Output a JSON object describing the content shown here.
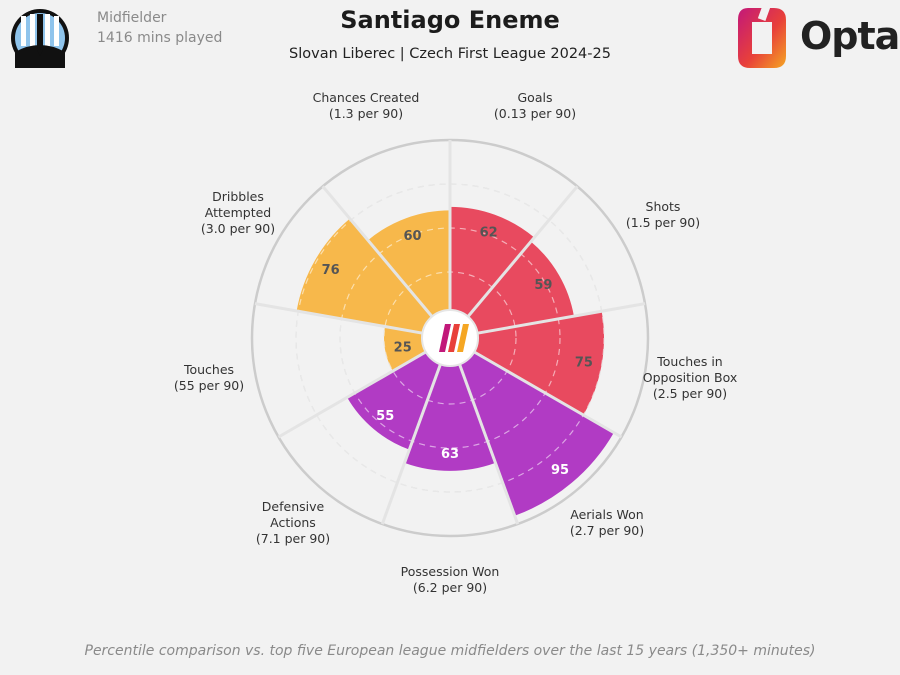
{
  "header": {
    "player_name": "Santiago Eneme",
    "subtitle": "Slovan Liberec | Czech First League 2024-25",
    "position": "Midfielder",
    "minutes": "1416 mins played",
    "brand": "Opta"
  },
  "footer": {
    "note": "Percentile comparison vs. top five European league midfielders over the last 15 years (1,350+ minutes)"
  },
  "colors": {
    "attacking": "#e84a5f",
    "possession": "#f7b84b",
    "defending": "#b13bc4",
    "background": "#f2f2f2",
    "grid": "#cccccc"
  },
  "chart_data": {
    "type": "polar-bar",
    "title": "Santiago Eneme",
    "subtitle": "Slovan Liberec | Czech First League 2024-25",
    "rlim": [
      0,
      100
    ],
    "series": [
      {
        "metric": "Goals",
        "per90": "(0.13 per 90)",
        "percentile": 62,
        "group": "attacking"
      },
      {
        "metric": "Shots",
        "per90": "(1.5 per 90)",
        "percentile": 59,
        "group": "attacking"
      },
      {
        "metric": "Touches in Opposition Box",
        "per90": "(2.5 per 90)",
        "percentile": 75,
        "group": "attacking"
      },
      {
        "metric": "Aerials Won",
        "per90": "(2.7 per 90)",
        "percentile": 95,
        "group": "defending"
      },
      {
        "metric": "Possession Won",
        "per90": "(6.2 per 90)",
        "percentile": 63,
        "group": "defending"
      },
      {
        "metric": "Defensive Actions",
        "per90": "(7.1 per 90)",
        "percentile": 55,
        "group": "defending"
      },
      {
        "metric": "Touches",
        "per90": "(55 per 90)",
        "percentile": 25,
        "group": "possession"
      },
      {
        "metric": "Dribbles Attempted",
        "per90": "(3.0 per 90)",
        "percentile": 76,
        "group": "possession"
      },
      {
        "metric": "Chances Created",
        "per90": "(1.3 per 90)",
        "percentile": 60,
        "group": "possession"
      }
    ]
  }
}
